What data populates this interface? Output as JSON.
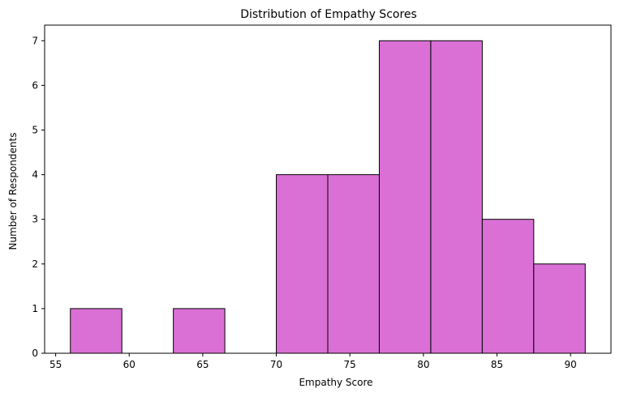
{
  "chart_data": {
    "type": "bar",
    "subtype": "histogram",
    "title": "Distribution of Empathy Scores",
    "xlabel": "Empathy Score",
    "ylabel": "Number of Respondents",
    "bins": [
      {
        "start": 56.0,
        "end": 59.5,
        "count": 1
      },
      {
        "start": 59.5,
        "end": 63.0,
        "count": 0
      },
      {
        "start": 63.0,
        "end": 66.5,
        "count": 1
      },
      {
        "start": 66.5,
        "end": 70.0,
        "count": 0
      },
      {
        "start": 70.0,
        "end": 73.5,
        "count": 4
      },
      {
        "start": 73.5,
        "end": 77.0,
        "count": 4
      },
      {
        "start": 77.0,
        "end": 80.5,
        "count": 7
      },
      {
        "start": 80.5,
        "end": 84.0,
        "count": 7
      },
      {
        "start": 84.0,
        "end": 87.5,
        "count": 3
      },
      {
        "start": 87.5,
        "end": 91.0,
        "count": 2
      }
    ],
    "xlim": [
      54.25,
      92.75
    ],
    "ylim": [
      0,
      7.35
    ],
    "xticks": [
      55,
      60,
      65,
      70,
      75,
      80,
      85,
      90
    ],
    "yticks": [
      0,
      1,
      2,
      3,
      4,
      5,
      6,
      7
    ],
    "bar_color": "#da70d6",
    "edge_color": "#000000",
    "grid": false
  }
}
